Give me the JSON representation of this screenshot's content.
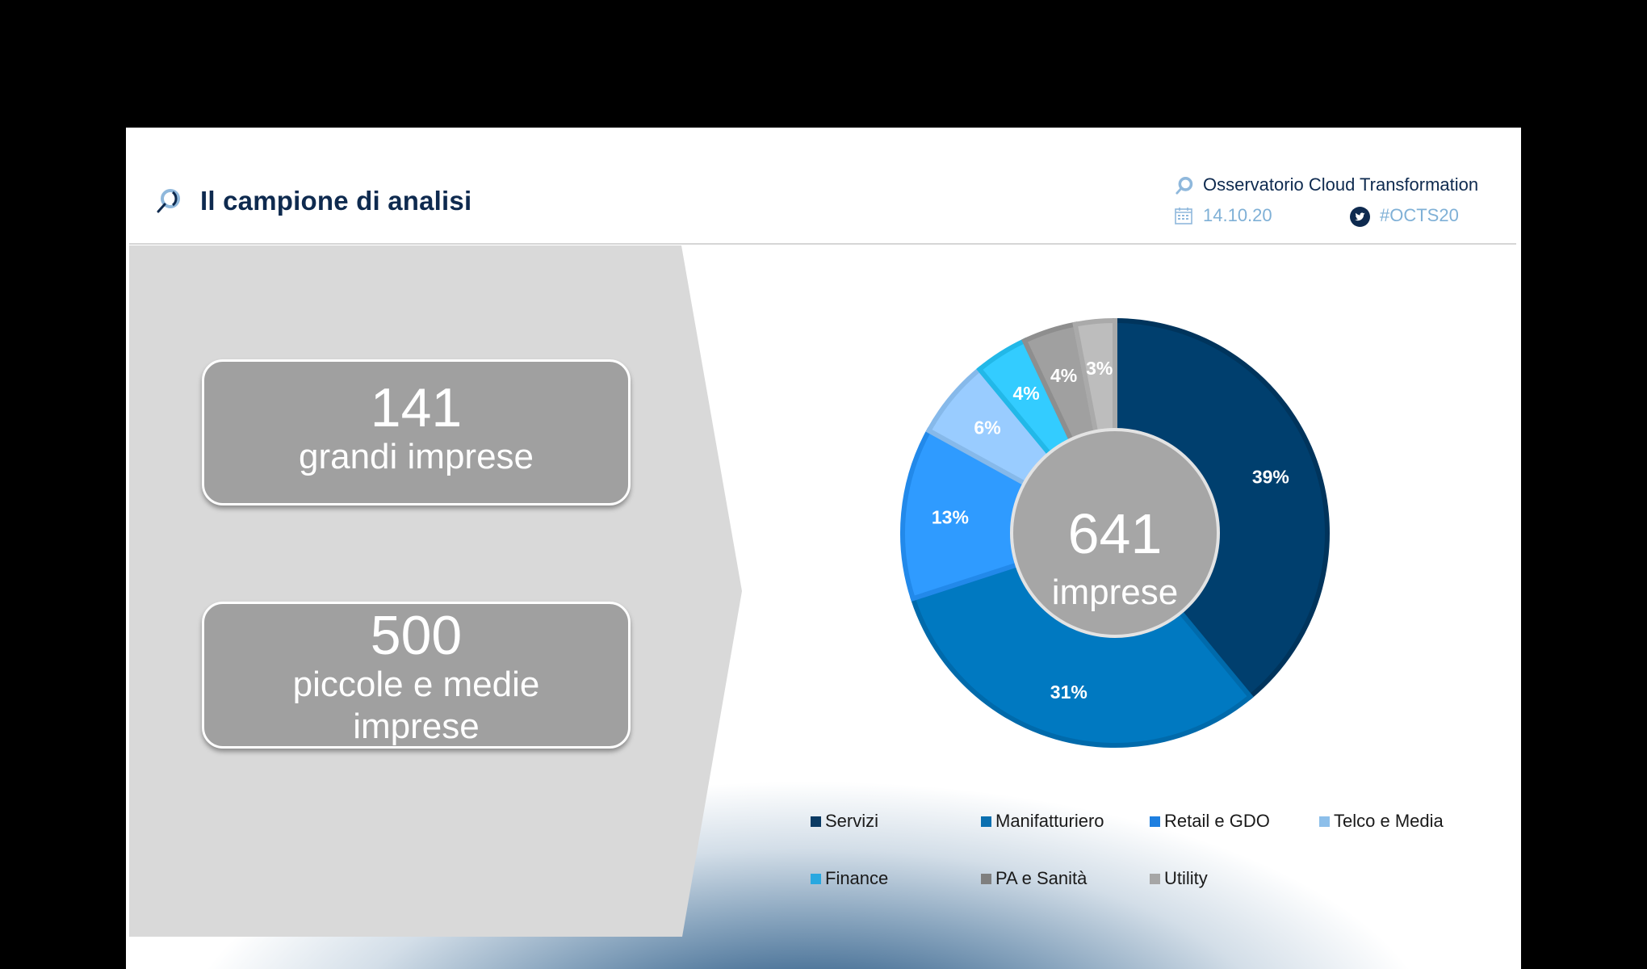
{
  "header": {
    "title": "Il campione di analisi",
    "title_icon": "magnifier-icon",
    "organization": "Osservatorio Cloud Transformation",
    "date": "14.10.20",
    "hashtag": "#OCTS20",
    "org_icon": "magnifier-icon",
    "date_icon": "calendar-icon",
    "hashtag_icon": "twitter-icon"
  },
  "stats": [
    {
      "value": "141",
      "label": "grandi imprese"
    },
    {
      "value": "500",
      "label_line1": "piccole e medie",
      "label_line2": "imprese"
    }
  ],
  "donut_center": {
    "value": "641",
    "label": "imprese"
  },
  "colors": {
    "title": "#0e2a4f",
    "meta_muted": "#7fb0d6",
    "panel_grey": "#d9d9d9",
    "box_grey": "#a0a0a0",
    "center_grey": "#a6a6a6"
  },
  "chart_data": {
    "type": "pie",
    "subtype": "donut",
    "title": "",
    "center_label": "641 imprese",
    "categories": [
      "Servizi",
      "Manifatturiero",
      "Retail e GDO",
      "Telco e Media",
      "Finance",
      "PA e Sanità",
      "Utility"
    ],
    "values": [
      39,
      31,
      13,
      6,
      4,
      4,
      3
    ],
    "labels": [
      "39%",
      "31%",
      "13%",
      "6%",
      "4%",
      "4%",
      "3%"
    ],
    "unit": "%",
    "slice_colors": [
      "#003f6e",
      "#0079c1",
      "#2f9bff",
      "#99ccff",
      "#33ccff",
      "#a0a0a0",
      "#bdbdbd"
    ],
    "slice_border_colors": [
      "#00345c",
      "#006aab",
      "#2289ea",
      "#86b9ea",
      "#22b8e8",
      "#8e8e8e",
      "#aaaaaa"
    ],
    "legend_colors": [
      "#0a3a63",
      "#0a6fb0",
      "#1e7fe0",
      "#8dbfea",
      "#29a8e0",
      "#7f7f7f",
      "#a6a6a6"
    ],
    "start_angle": 0,
    "direction": "clockwise",
    "legend_position": "bottom",
    "legend_rows": [
      [
        "Servizi",
        "Manifatturiero",
        "Retail e GDO",
        "Telco e Media"
      ],
      [
        "Finance",
        "PA e Sanità",
        "Utility"
      ]
    ]
  }
}
